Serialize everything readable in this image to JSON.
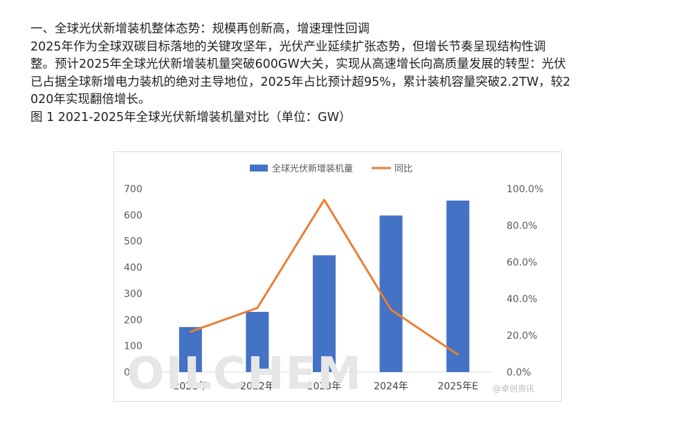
{
  "article": {
    "heading": "一、全球光伏新增装机整体态势：规模再创新高，增速理性回调",
    "para_lines": [
      "2025年作为全球双碳目标落地的关键攻坚年，光伏产业延续扩张态势，但增长节奏呈现结构性调",
      "整。预计2025年全球光伏新增装机量突破600GW大关，实现从高速增长向高质量发展的转型：光伏",
      "已占据全球新增电力装机的绝对主导地位，2025年占比预计超95%，累计装机容量突破2.2TW，较2",
      "020年实现翻倍增长。"
    ],
    "figure_caption": "图 1 2021-2025年全球光伏新增装机量对比（单位：GW）"
  },
  "chart_data": {
    "type": "bar",
    "title": "",
    "categories": [
      "2021年",
      "2022年",
      "2023年",
      "2024年",
      "2025年E"
    ],
    "series": [
      {
        "name": "全球光伏新增装机量",
        "type": "bar",
        "axis": "left",
        "color": "#4472C4",
        "values": [
          172,
          230,
          446,
          598,
          655
        ]
      },
      {
        "name": "同比",
        "type": "line",
        "axis": "right",
        "color": "#ED7D31",
        "values": [
          22.0,
          35.0,
          94.0,
          34.0,
          9.5
        ]
      }
    ],
    "y_left": {
      "min": 0,
      "max": 700,
      "ticks": [
        "0",
        "100",
        "200",
        "300",
        "400",
        "500",
        "600",
        "700"
      ]
    },
    "y_right": {
      "min": 0,
      "max": 100,
      "ticks": [
        "0.0%",
        "20.0%",
        "40.0%",
        "60.0%",
        "80.0%",
        "100.0%"
      ]
    },
    "legend_position": "top-center",
    "grid": false
  },
  "watermark": "OILCHEM",
  "weibo_mark": "@卓创资讯"
}
